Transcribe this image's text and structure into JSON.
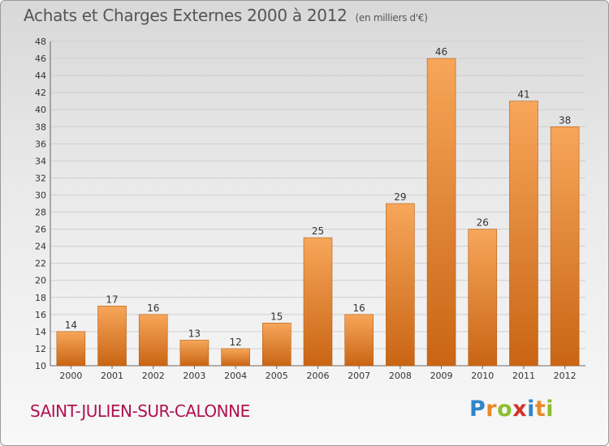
{
  "title": "Achats et Charges Externes 2000 à 2012",
  "subtitle": "(en milliers d'€)",
  "town": "SAINT-JULIEN-SUR-CALONNE",
  "logo": {
    "letters": [
      "P",
      "r",
      "o",
      "x",
      "i",
      "t",
      "i"
    ],
    "colors": [
      "#2f86c9",
      "#e8892a",
      "#8cbf2e",
      "#d2332b",
      "#2f86c9",
      "#e8892a",
      "#8cbf2e"
    ]
  },
  "colors": {
    "bar_top": "#f7a65a",
    "bar_bottom": "#c96514",
    "grid": "#cfcfcf",
    "axis_text": "#333333"
  },
  "chart_data": {
    "type": "bar",
    "categories": [
      "2000",
      "2001",
      "2002",
      "2003",
      "2004",
      "2005",
      "2006",
      "2007",
      "2008",
      "2009",
      "2010",
      "2011",
      "2012"
    ],
    "values": [
      14,
      17,
      16,
      13,
      12,
      15,
      25,
      16,
      29,
      46,
      26,
      41,
      38
    ],
    "ylim": [
      10,
      48
    ],
    "ytick_step": 2,
    "grid": true
  }
}
